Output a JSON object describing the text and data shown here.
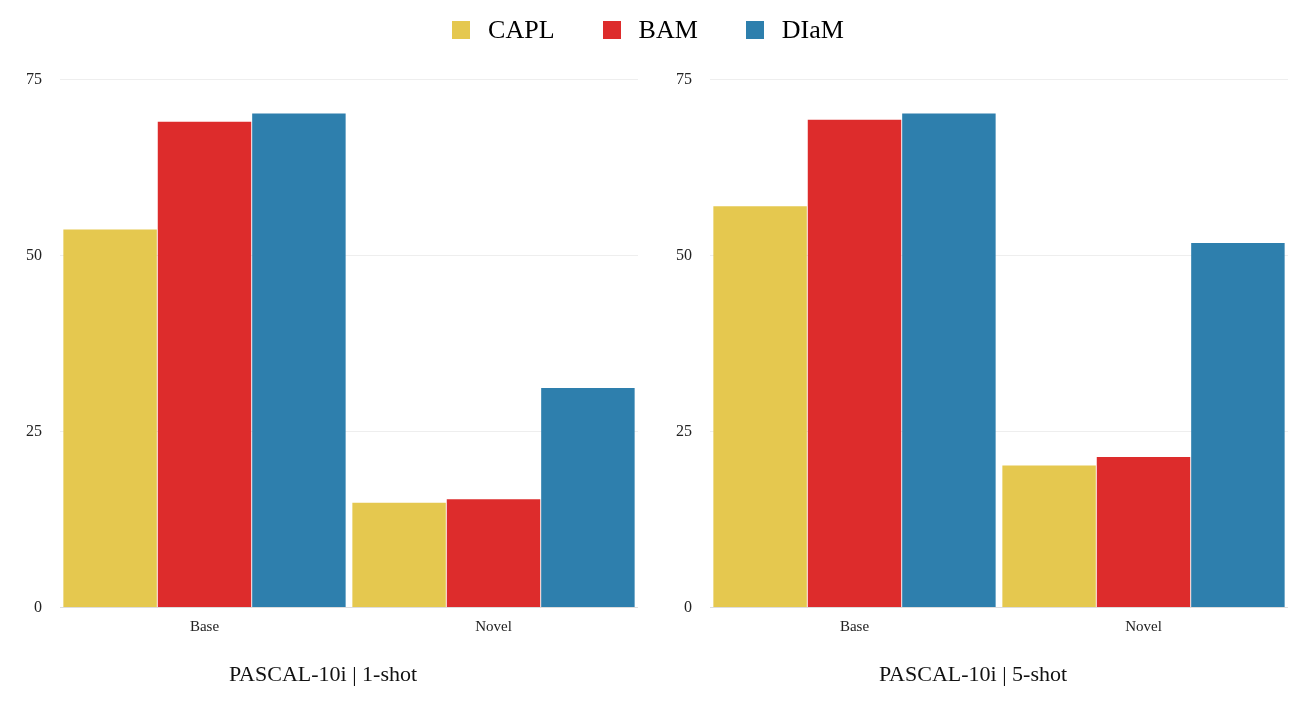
{
  "chart_data": [
    {
      "type": "bar",
      "title": "PASCAL-10i | 1-shot",
      "categories": [
        "Base",
        "Novel"
      ],
      "series": [
        {
          "name": "CAPL",
          "color": "#e5c84f",
          "values": [
            53.7,
            14.9
          ]
        },
        {
          "name": "BAM",
          "color": "#dd2c2c",
          "values": [
            69.0,
            15.4
          ]
        },
        {
          "name": "DIaM",
          "color": "#2e7fad",
          "values": [
            70.2,
            31.2
          ]
        }
      ],
      "ylim": [
        0,
        75
      ],
      "yticks": [
        0,
        25,
        50,
        75
      ],
      "grid": "y",
      "legend": "top"
    },
    {
      "type": "bar",
      "title": "PASCAL-10i | 5-shot",
      "categories": [
        "Base",
        "Novel"
      ],
      "series": [
        {
          "color": "#e5c84f",
          "values": [
            57.0,
            20.2
          ]
        },
        {
          "color": "#dd2c2c",
          "values": [
            69.3,
            21.4
          ]
        },
        {
          "color": "#2e7fad",
          "values": [
            70.2,
            51.8
          ]
        }
      ],
      "ylim": [
        0,
        75
      ],
      "yticks": [
        0,
        25,
        50,
        75
      ],
      "grid": "y"
    }
  ]
}
